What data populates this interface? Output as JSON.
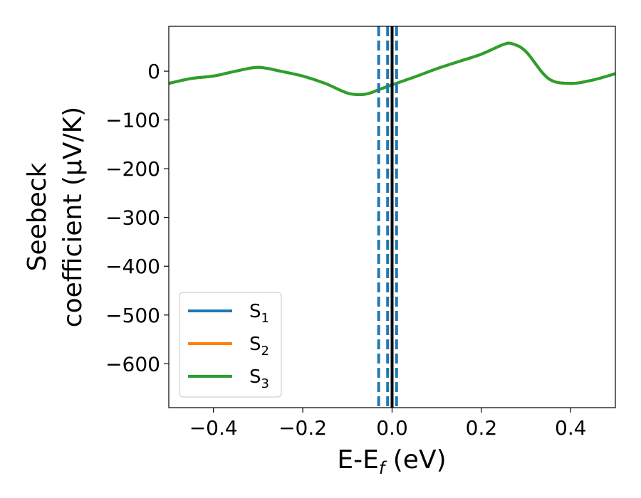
{
  "chart_data": {
    "type": "line",
    "xlabel": {
      "base": "E-E",
      "sub": "f",
      "suffix": " (eV)"
    },
    "ylabel_lines": [
      "Seebeck",
      "coefficient  (μV/K)"
    ],
    "xlim": [
      -0.5,
      0.5
    ],
    "ylim": [
      -690,
      92
    ],
    "xticks": [
      -0.4,
      -0.2,
      0.0,
      0.2,
      0.4
    ],
    "xtick_labels": [
      "−0.4",
      "−0.2",
      "0.0",
      "0.2",
      "0.4"
    ],
    "yticks": [
      0,
      -100,
      -200,
      -300,
      -400,
      -500,
      -600
    ],
    "ytick_labels": [
      "0",
      "−100",
      "−200",
      "−300",
      "−400",
      "−500",
      "−600"
    ],
    "grid": false,
    "legend_position": "lower-left",
    "series": [
      {
        "name": {
          "base": "S",
          "sub": "1"
        },
        "color": "#1f77b4",
        "x": [
          -0.5,
          -0.45,
          -0.4,
          -0.35,
          -0.3,
          -0.25,
          -0.2,
          -0.15,
          -0.1,
          -0.07,
          -0.05,
          -0.03,
          0.0,
          0.05,
          0.1,
          0.15,
          0.2,
          0.25,
          0.27,
          0.3,
          0.35,
          0.4,
          0.45,
          0.5
        ],
        "y": [
          -25,
          -15,
          -10,
          0,
          8,
          0,
          -10,
          -25,
          -45,
          -48,
          -45,
          -38,
          -28,
          -12,
          5,
          20,
          35,
          55,
          56,
          40,
          -15,
          -25,
          -18,
          -5
        ]
      },
      {
        "name": {
          "base": "S",
          "sub": "2"
        },
        "color": "#ff7f0e",
        "x": [
          -0.5,
          -0.45,
          -0.4,
          -0.35,
          -0.3,
          -0.25,
          -0.2,
          -0.15,
          -0.1,
          -0.07,
          -0.05,
          -0.03,
          0.0,
          0.05,
          0.1,
          0.15,
          0.2,
          0.25,
          0.27,
          0.3,
          0.35,
          0.4,
          0.45,
          0.5
        ],
        "y": [
          -25,
          -15,
          -10,
          0,
          8,
          0,
          -10,
          -25,
          -45,
          -48,
          -45,
          -38,
          -28,
          -12,
          5,
          20,
          35,
          55,
          56,
          40,
          -15,
          -25,
          -18,
          -5
        ]
      },
      {
        "name": {
          "base": "S",
          "sub": "3"
        },
        "color": "#2ca02c",
        "x": [
          -0.5,
          -0.45,
          -0.4,
          -0.35,
          -0.3,
          -0.25,
          -0.2,
          -0.15,
          -0.1,
          -0.07,
          -0.05,
          -0.03,
          0.0,
          0.05,
          0.1,
          0.15,
          0.2,
          0.25,
          0.27,
          0.3,
          0.35,
          0.4,
          0.45,
          0.5
        ],
        "y": [
          -25,
          -15,
          -10,
          0,
          8,
          0,
          -10,
          -25,
          -45,
          -48,
          -45,
          -38,
          -28,
          -12,
          5,
          20,
          35,
          55,
          56,
          40,
          -15,
          -25,
          -18,
          -5
        ]
      }
    ],
    "vlines": [
      {
        "x": -0.03,
        "color": "#1f77b4",
        "style": "dashed"
      },
      {
        "x": -0.01,
        "color": "#1f77b4",
        "style": "dashed"
      },
      {
        "x": 0.0,
        "color": "#000000",
        "style": "solid"
      },
      {
        "x": 0.01,
        "color": "#1f77b4",
        "style": "dashed"
      }
    ]
  }
}
